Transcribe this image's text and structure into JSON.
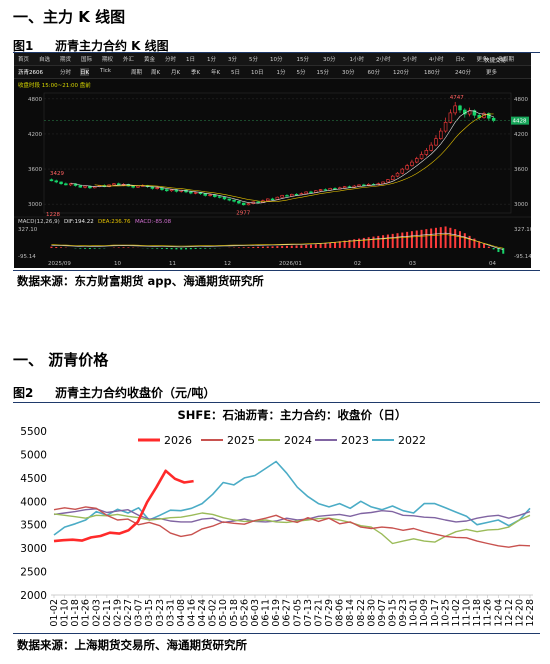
{
  "section1": {
    "title": "一、主力 K 线图"
  },
  "figure1": {
    "label": "图1",
    "caption": "沥青主力合约 K 线图",
    "source": "数据来源：东方财富期货 app、海通期货研究所",
    "terminal": {
      "top_tabs": [
        "首页",
        "自选",
        "期货",
        "国际",
        "期权",
        "外汇",
        "黄金",
        "分时",
        "1日",
        "1分",
        "3分",
        "5分",
        "10分",
        "15分",
        "30分",
        "1小时",
        "2小时",
        "3小时",
        "4小时",
        "日K",
        "更多",
        "多周期"
      ],
      "top_right": "快捷交易",
      "contract": "沥青2606",
      "sub_tabs": [
        "分时",
        "日K",
        "Tick",
        "周期",
        "周K",
        "月K",
        "季K",
        "年K",
        "5日",
        "10日",
        "1分",
        "5分",
        "15分",
        "30分",
        "60分",
        "120分",
        "180分",
        "240分",
        "更多"
      ],
      "session_note": "收盘时段 15:00~21:00 盘前",
      "price_ticks": [
        "4800",
        "4200",
        "3600",
        "3000"
      ],
      "annot_high": "4747",
      "annot_low": "2977",
      "annot_left_high": "3429",
      "annot_left_low": "1228",
      "last_price": "4428",
      "macd_label": "MACD(12,26,9)",
      "macd_dif": "DIF:194.22",
      "macd_dea": "DEA:236.76",
      "macd_val": "MACD:-85.08",
      "macd_top": "327.10",
      "macd_bottom": "-95.14",
      "macd_right_top": "327.10",
      "macd_right_bottom": "-95.14",
      "date_ticks": [
        "2025/09",
        "10",
        "11",
        "12",
        "2026/01",
        "02",
        "03",
        "04"
      ]
    },
    "chart_data": {
      "type": "candlestick",
      "note_units": "元/吨",
      "candles": [
        [
          3420,
          3400,
          3440,
          3390
        ],
        [
          3400,
          3380,
          3420,
          3360
        ],
        [
          3380,
          3350,
          3390,
          3330
        ],
        [
          3350,
          3330,
          3370,
          3320
        ],
        [
          3330,
          3350,
          3360,
          3310
        ],
        [
          3350,
          3320,
          3360,
          3300
        ],
        [
          3320,
          3290,
          3330,
          3280
        ],
        [
          3290,
          3310,
          3320,
          3270
        ],
        [
          3310,
          3280,
          3320,
          3260
        ],
        [
          3280,
          3300,
          3310,
          3270
        ],
        [
          3300,
          3320,
          3330,
          3290
        ],
        [
          3320,
          3300,
          3340,
          3290
        ],
        [
          3300,
          3330,
          3340,
          3290
        ],
        [
          3330,
          3350,
          3360,
          3320
        ],
        [
          3350,
          3330,
          3370,
          3320
        ],
        [
          3330,
          3340,
          3360,
          3310
        ],
        [
          3340,
          3310,
          3350,
          3300
        ],
        [
          3310,
          3290,
          3320,
          3270
        ],
        [
          3290,
          3310,
          3320,
          3280
        ],
        [
          3310,
          3320,
          3340,
          3300
        ],
        [
          3320,
          3300,
          3330,
          3280
        ],
        [
          3300,
          3270,
          3310,
          3250
        ],
        [
          3270,
          3280,
          3300,
          3250
        ],
        [
          3280,
          3250,
          3290,
          3230
        ],
        [
          3250,
          3230,
          3260,
          3210
        ],
        [
          3230,
          3250,
          3260,
          3210
        ],
        [
          3250,
          3220,
          3260,
          3200
        ],
        [
          3220,
          3240,
          3250,
          3200
        ],
        [
          3240,
          3210,
          3250,
          3190
        ],
        [
          3210,
          3190,
          3220,
          3170
        ],
        [
          3190,
          3200,
          3220,
          3170
        ],
        [
          3200,
          3180,
          3210,
          3160
        ],
        [
          3180,
          3150,
          3190,
          3130
        ],
        [
          3150,
          3160,
          3180,
          3130
        ],
        [
          3160,
          3130,
          3170,
          3110
        ],
        [
          3130,
          3120,
          3150,
          3100
        ],
        [
          3120,
          3090,
          3130,
          3070
        ],
        [
          3090,
          3070,
          3100,
          3050
        ],
        [
          3070,
          3050,
          3080,
          3030
        ],
        [
          3050,
          3020,
          3060,
          3000
        ],
        [
          3020,
          2990,
          3030,
          2977
        ],
        [
          2990,
          3010,
          3030,
          2980
        ],
        [
          3010,
          3040,
          3050,
          3000
        ],
        [
          3040,
          3030,
          3060,
          3010
        ],
        [
          3030,
          3060,
          3080,
          3020
        ],
        [
          3060,
          3090,
          3100,
          3050
        ],
        [
          3090,
          3080,
          3110,
          3070
        ],
        [
          3080,
          3120,
          3130,
          3070
        ],
        [
          3120,
          3150,
          3160,
          3110
        ],
        [
          3150,
          3140,
          3170,
          3130
        ],
        [
          3140,
          3170,
          3180,
          3130
        ],
        [
          3170,
          3160,
          3190,
          3150
        ],
        [
          3160,
          3180,
          3200,
          3150
        ],
        [
          3180,
          3210,
          3220,
          3170
        ],
        [
          3210,
          3200,
          3230,
          3190
        ],
        [
          3200,
          3230,
          3240,
          3190
        ],
        [
          3230,
          3250,
          3260,
          3220
        ],
        [
          3250,
          3240,
          3270,
          3230
        ],
        [
          3240,
          3270,
          3280,
          3230
        ],
        [
          3270,
          3260,
          3290,
          3250
        ],
        [
          3260,
          3280,
          3300,
          3250
        ],
        [
          3280,
          3300,
          3310,
          3270
        ],
        [
          3300,
          3290,
          3320,
          3280
        ],
        [
          3290,
          3310,
          3330,
          3280
        ],
        [
          3310,
          3330,
          3340,
          3300
        ],
        [
          3330,
          3320,
          3350,
          3310
        ],
        [
          3320,
          3340,
          3360,
          3310
        ],
        [
          3340,
          3330,
          3360,
          3320
        ],
        [
          3330,
          3350,
          3370,
          3320
        ],
        [
          3350,
          3380,
          3390,
          3340
        ],
        [
          3380,
          3420,
          3430,
          3370
        ],
        [
          3420,
          3480,
          3500,
          3410
        ],
        [
          3480,
          3530,
          3550,
          3460
        ],
        [
          3530,
          3600,
          3620,
          3510
        ],
        [
          3600,
          3660,
          3690,
          3580
        ],
        [
          3660,
          3720,
          3760,
          3640
        ],
        [
          3720,
          3780,
          3810,
          3700
        ],
        [
          3780,
          3850,
          3900,
          3760
        ],
        [
          3850,
          3920,
          3960,
          3820
        ],
        [
          3920,
          4010,
          4060,
          3900
        ],
        [
          4010,
          4120,
          4180,
          3990
        ],
        [
          4120,
          4250,
          4300,
          4100
        ],
        [
          4250,
          4400,
          4480,
          4220
        ],
        [
          4400,
          4560,
          4620,
          4380
        ],
        [
          4560,
          4680,
          4747,
          4520
        ],
        [
          4680,
          4610,
          4700,
          4560
        ],
        [
          4610,
          4540,
          4640,
          4480
        ],
        [
          4540,
          4600,
          4650,
          4500
        ],
        [
          4600,
          4520,
          4620,
          4470
        ],
        [
          4520,
          4480,
          4560,
          4440
        ],
        [
          4480,
          4550,
          4580,
          4460
        ],
        [
          4550,
          4470,
          4570,
          4430
        ],
        [
          4470,
          4428,
          4500,
          4400
        ]
      ],
      "macd_hist": [
        20,
        15,
        10,
        5,
        0,
        -5,
        -10,
        -12,
        -15,
        -10,
        -8,
        -5,
        0,
        5,
        8,
        10,
        8,
        5,
        2,
        -2,
        -5,
        -8,
        -10,
        -12,
        -15,
        -18,
        -20,
        -22,
        -20,
        -18,
        -15,
        -12,
        -10,
        -8,
        -5,
        -2,
        0,
        3,
        5,
        8,
        10,
        12,
        15,
        18,
        20,
        22,
        25,
        28,
        30,
        32,
        35,
        38,
        40,
        45,
        50,
        55,
        60,
        70,
        80,
        90,
        100,
        110,
        120,
        130,
        140,
        150,
        160,
        170,
        180,
        190,
        200,
        210,
        220,
        230,
        240,
        250,
        260,
        270,
        280,
        290,
        300,
        310,
        320,
        300,
        280,
        250,
        220,
        180,
        140,
        100,
        60,
        20,
        -20,
        -60,
        -85
      ]
    }
  },
  "section2": {
    "title": "一、    沥青价格"
  },
  "figure2": {
    "label": "图2",
    "caption": "沥青主力合约收盘价（元/吨）",
    "source": "数据来源：上海期货交易所、海通期货研究所",
    "chart_data": {
      "type": "line",
      "title": "SHFE：石油沥青：主力合约：收盘价（日）",
      "ylim": [
        2000,
        5500
      ],
      "yticks": [
        2000,
        2500,
        3000,
        3500,
        4000,
        4500,
        5000,
        5500
      ],
      "x_ticks": [
        "01-02",
        "01-10",
        "01-18",
        "01-26",
        "02-03",
        "02-11",
        "02-19",
        "02-27",
        "03-07",
        "03-15",
        "03-23",
        "03-31",
        "04-08",
        "04-16",
        "04-24",
        "05-02",
        "05-10",
        "05-18",
        "05-26",
        "06-03",
        "06-11",
        "06-19",
        "06-27",
        "07-05",
        "07-13",
        "07-21",
        "07-29",
        "08-06",
        "08-14",
        "08-22",
        "08-30",
        "09-07",
        "09-15",
        "09-23",
        "10-01",
        "10-09",
        "10-17",
        "10-25",
        "11-02",
        "11-10",
        "11-18",
        "11-26",
        "12-04",
        "12-12",
        "12-20",
        "12-28"
      ],
      "legend_position": "top",
      "series": [
        {
          "name": "2026",
          "color": "#ff2a2a",
          "width": 2.6,
          "values": [
            3150,
            3170,
            3180,
            3160,
            3230,
            3260,
            3330,
            3310,
            3380,
            3560,
            3980,
            4300,
            4650,
            4480,
            4400,
            4430
          ]
        },
        {
          "name": "2025",
          "color": "#c8524f",
          "width": 1.4,
          "values": [
            3820,
            3860,
            3830,
            3880,
            3850,
            3700,
            3600,
            3620,
            3500,
            3550,
            3480,
            3320,
            3250,
            3290,
            3410,
            3470,
            3560,
            3530,
            3510,
            3590,
            3640,
            3700,
            3600,
            3550,
            3650,
            3570,
            3640,
            3520,
            3560,
            3450,
            3420,
            3450,
            3430,
            3380,
            3420,
            3350,
            3300,
            3250,
            3230,
            3220,
            3150,
            3100,
            3050,
            3020,
            3060,
            3050
          ]
        },
        {
          "name": "2024",
          "color": "#9bbb59",
          "width": 1.4,
          "values": [
            3730,
            3700,
            3670,
            3640,
            3700,
            3690,
            3720,
            3680,
            3650,
            3600,
            3620,
            3650,
            3660,
            3700,
            3750,
            3720,
            3650,
            3600,
            3570,
            3580,
            3600,
            3560,
            3550,
            3580,
            3600,
            3630,
            3640,
            3600,
            3550,
            3480,
            3450,
            3300,
            3100,
            3150,
            3200,
            3150,
            3130,
            3250,
            3350,
            3400,
            3350,
            3390,
            3400,
            3450,
            3600,
            3700
          ]
        },
        {
          "name": "2023",
          "color": "#8064a2",
          "width": 1.4,
          "values": [
            3720,
            3750,
            3780,
            3820,
            3840,
            3760,
            3790,
            3820,
            3700,
            3620,
            3630,
            3580,
            3560,
            3560,
            3620,
            3640,
            3550,
            3580,
            3620,
            3570,
            3560,
            3580,
            3640,
            3600,
            3620,
            3680,
            3700,
            3720,
            3680,
            3740,
            3760,
            3800,
            3780,
            3700,
            3690,
            3660,
            3650,
            3600,
            3560,
            3580,
            3640,
            3680,
            3700,
            3640,
            3700,
            3780
          ]
        },
        {
          "name": "2022",
          "color": "#4bacc6",
          "width": 1.6,
          "values": [
            3280,
            3450,
            3520,
            3600,
            3780,
            3700,
            3830,
            3750,
            3860,
            3600,
            3700,
            3810,
            3800,
            3850,
            3950,
            4150,
            4400,
            4350,
            4500,
            4550,
            4700,
            4850,
            4600,
            4300,
            4100,
            3950,
            3880,
            3950,
            3850,
            4000,
            3880,
            3820,
            3900,
            3800,
            3750,
            3950,
            3950,
            3860,
            3770,
            3680,
            3500,
            3550,
            3600,
            3480,
            3600,
            3850
          ]
        }
      ]
    }
  }
}
